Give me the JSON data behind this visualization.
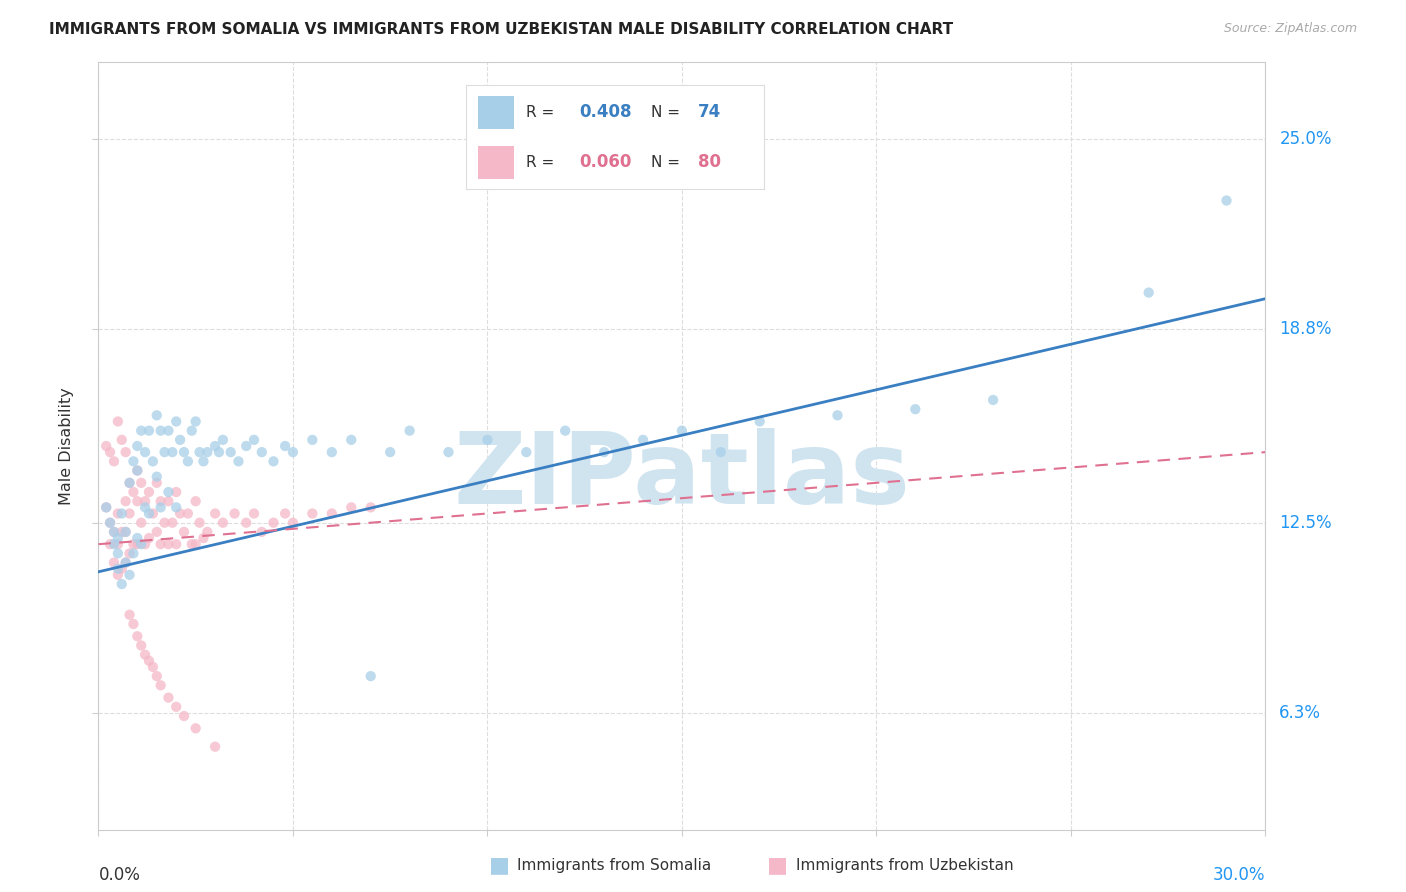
{
  "title": "IMMIGRANTS FROM SOMALIA VS IMMIGRANTS FROM UZBEKISTAN MALE DISABILITY CORRELATION CHART",
  "source": "Source: ZipAtlas.com",
  "ylabel": "Male Disability",
  "ytick_labels": [
    "6.3%",
    "12.5%",
    "18.8%",
    "25.0%"
  ],
  "ytick_values": [
    0.063,
    0.125,
    0.188,
    0.25
  ],
  "xmin": 0.0,
  "xmax": 0.3,
  "ymin": 0.025,
  "ymax": 0.275,
  "somalia_color": "#a8cfe8",
  "uzbekistan_color": "#f4b8c8",
  "somalia_legend": "Immigrants from Somalia",
  "uzbekistan_legend": "Immigrants from Uzbekistan",
  "somalia_line_color": "#3a7fc1",
  "uzbekistan_line_color": "#e07090",
  "watermark_text": "ZIPatlas",
  "watermark_color": "#d0e4f0",
  "somalia_line_start_y": 0.109,
  "somalia_line_end_y": 0.198,
  "uzbekistan_line_start_y": 0.118,
  "uzbekistan_line_end_y": 0.148,
  "somalia_x": [
    0.002,
    0.003,
    0.004,
    0.004,
    0.005,
    0.005,
    0.005,
    0.006,
    0.006,
    0.007,
    0.007,
    0.008,
    0.008,
    0.009,
    0.009,
    0.01,
    0.01,
    0.01,
    0.011,
    0.011,
    0.012,
    0.012,
    0.013,
    0.013,
    0.014,
    0.015,
    0.015,
    0.016,
    0.016,
    0.017,
    0.018,
    0.018,
    0.019,
    0.02,
    0.02,
    0.021,
    0.022,
    0.023,
    0.024,
    0.025,
    0.026,
    0.027,
    0.028,
    0.03,
    0.031,
    0.032,
    0.034,
    0.036,
    0.038,
    0.04,
    0.042,
    0.045,
    0.048,
    0.05,
    0.055,
    0.06,
    0.065,
    0.07,
    0.075,
    0.08,
    0.09,
    0.1,
    0.11,
    0.12,
    0.13,
    0.14,
    0.15,
    0.16,
    0.17,
    0.19,
    0.21,
    0.23,
    0.27,
    0.29
  ],
  "somalia_y": [
    0.13,
    0.125,
    0.122,
    0.118,
    0.12,
    0.115,
    0.11,
    0.128,
    0.105,
    0.122,
    0.112,
    0.138,
    0.108,
    0.145,
    0.115,
    0.15,
    0.142,
    0.12,
    0.155,
    0.118,
    0.148,
    0.13,
    0.155,
    0.128,
    0.145,
    0.16,
    0.14,
    0.155,
    0.13,
    0.148,
    0.155,
    0.135,
    0.148,
    0.158,
    0.13,
    0.152,
    0.148,
    0.145,
    0.155,
    0.158,
    0.148,
    0.145,
    0.148,
    0.15,
    0.148,
    0.152,
    0.148,
    0.145,
    0.15,
    0.152,
    0.148,
    0.145,
    0.15,
    0.148,
    0.152,
    0.148,
    0.152,
    0.075,
    0.148,
    0.155,
    0.148,
    0.152,
    0.148,
    0.155,
    0.148,
    0.152,
    0.155,
    0.148,
    0.158,
    0.16,
    0.162,
    0.165,
    0.2,
    0.23
  ],
  "uzbekistan_x": [
    0.002,
    0.003,
    0.003,
    0.004,
    0.004,
    0.005,
    0.005,
    0.005,
    0.006,
    0.006,
    0.007,
    0.007,
    0.007,
    0.008,
    0.008,
    0.008,
    0.009,
    0.009,
    0.01,
    0.01,
    0.01,
    0.011,
    0.011,
    0.012,
    0.012,
    0.013,
    0.013,
    0.014,
    0.015,
    0.015,
    0.016,
    0.016,
    0.017,
    0.018,
    0.018,
    0.019,
    0.02,
    0.02,
    0.021,
    0.022,
    0.023,
    0.024,
    0.025,
    0.025,
    0.026,
    0.027,
    0.028,
    0.03,
    0.032,
    0.035,
    0.038,
    0.04,
    0.042,
    0.045,
    0.048,
    0.05,
    0.055,
    0.06,
    0.065,
    0.07,
    0.002,
    0.003,
    0.004,
    0.005,
    0.006,
    0.007,
    0.008,
    0.009,
    0.01,
    0.011,
    0.012,
    0.013,
    0.014,
    0.015,
    0.016,
    0.018,
    0.02,
    0.022,
    0.025,
    0.03
  ],
  "uzbekistan_y": [
    0.13,
    0.125,
    0.118,
    0.122,
    0.112,
    0.128,
    0.118,
    0.108,
    0.122,
    0.11,
    0.132,
    0.122,
    0.112,
    0.138,
    0.128,
    0.115,
    0.135,
    0.118,
    0.142,
    0.132,
    0.118,
    0.138,
    0.125,
    0.132,
    0.118,
    0.135,
    0.12,
    0.128,
    0.138,
    0.122,
    0.132,
    0.118,
    0.125,
    0.132,
    0.118,
    0.125,
    0.135,
    0.118,
    0.128,
    0.122,
    0.128,
    0.118,
    0.132,
    0.118,
    0.125,
    0.12,
    0.122,
    0.128,
    0.125,
    0.128,
    0.125,
    0.128,
    0.122,
    0.125,
    0.128,
    0.125,
    0.128,
    0.128,
    0.13,
    0.13,
    0.15,
    0.148,
    0.145,
    0.158,
    0.152,
    0.148,
    0.095,
    0.092,
    0.088,
    0.085,
    0.082,
    0.08,
    0.078,
    0.075,
    0.072,
    0.068,
    0.065,
    0.062,
    0.058,
    0.052
  ]
}
